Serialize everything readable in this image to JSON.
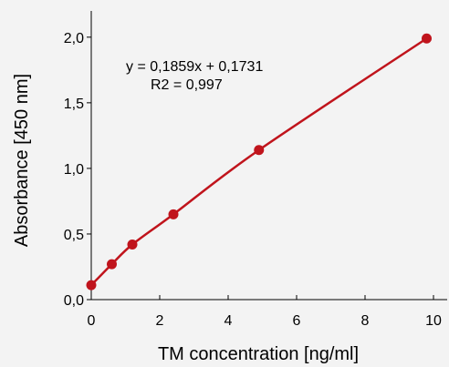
{
  "chart_data": {
    "type": "line",
    "title": "",
    "xlabel": "TM concentration [ng/ml]",
    "ylabel": "Absorbance [450 nm]",
    "xlim": [
      0,
      10.4
    ],
    "ylim": [
      0,
      2.2
    ],
    "x_ticks": [
      0,
      2,
      4,
      6,
      8,
      10
    ],
    "x_tick_labels": [
      "0",
      "2",
      "4",
      "6",
      "8",
      "10"
    ],
    "y_ticks": [
      0,
      0.5,
      1.0,
      1.5,
      2.0
    ],
    "y_tick_labels": [
      "0,0",
      "0,5",
      "1,0",
      "1,5",
      "2,0"
    ],
    "grid": false,
    "legend": "none",
    "series": [
      {
        "color": "#c0141c",
        "x": [
          0,
          0.6,
          1.2,
          2.4,
          4.9,
          9.8
        ],
        "y": [
          0.11,
          0.27,
          0.42,
          0.65,
          1.14,
          1.99
        ]
      }
    ],
    "annotations": {
      "equation": "y = 0,1859x + 0,1731",
      "r2": "R2 = 0,997"
    }
  }
}
